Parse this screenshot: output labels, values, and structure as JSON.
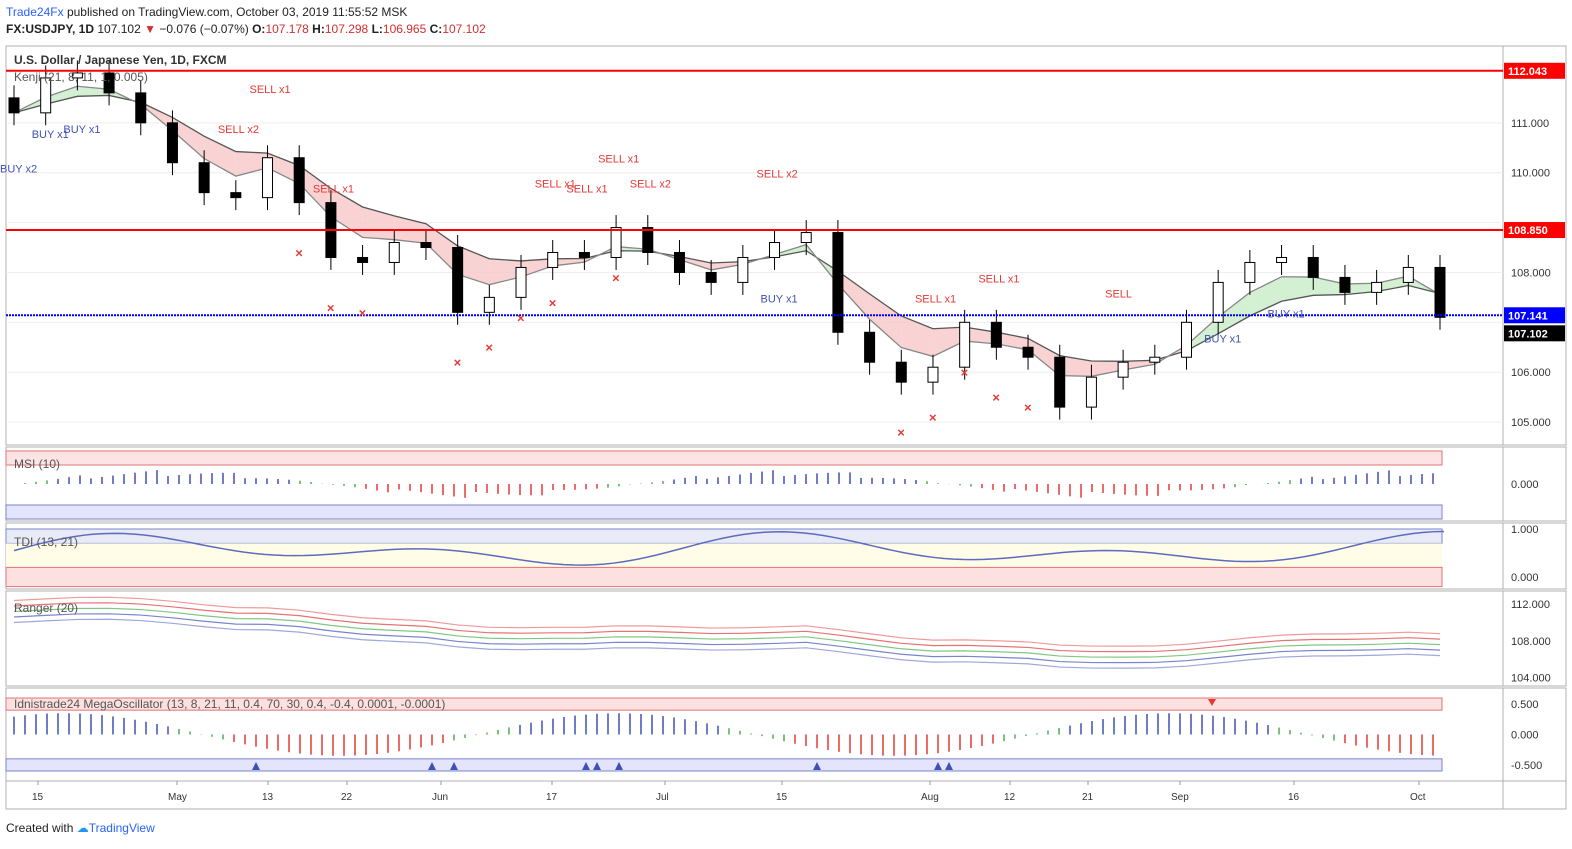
{
  "header": {
    "brand": "Trade24Fx",
    "published": "published on TradingView.com, October 03, 2019 11:55:52 MSK",
    "symbol": "FX:USDJPY, 1D",
    "last": "107.102",
    "change": "−0.076 (−0.07%)",
    "o_label": "O:",
    "o": "107.178",
    "h_label": "H:",
    "h": "107.298",
    "l_label": "L:",
    "l": "106.965",
    "c_label": "C:",
    "c": "107.102"
  },
  "main_pane": {
    "title": "U.S. Dollar / Japanese Yen, 1D, FXCM",
    "indicator": "Kenji (21, 8, 11, 1, 0.005)",
    "y_ticks": [
      "111.000",
      "110.000",
      "108.000",
      "106.000",
      "105.000"
    ],
    "hlines": [
      {
        "value": 112.043,
        "label": "112.043",
        "color": "#ff0000"
      },
      {
        "value": 108.85,
        "label": "108.850",
        "color": "#ff0000"
      },
      {
        "value": 107.141,
        "label": "107.141",
        "color": "#0000ff"
      }
    ],
    "last_price": "107.102",
    "annotations_sell": [
      "SELL x2",
      "SELL x1",
      "SELL x1",
      "SELL x1",
      "SELL x1",
      "SELL x1",
      "SELL x2",
      "SELL x2",
      "SELL x1",
      "SELL x1",
      "SELL"
    ],
    "annotations_buy": [
      "BUY x2",
      "BUY x1",
      "BUY x1",
      "BUY x1",
      "BUY x1",
      "BUY x1"
    ]
  },
  "panes": {
    "msi": {
      "label": "MSI (10)",
      "ticks": [
        "0.000"
      ]
    },
    "tdi": {
      "label": "TDI (13, 21)",
      "ticks": [
        "1.000",
        "0.000"
      ]
    },
    "ranger": {
      "label": "Ranger (20)",
      "ticks": [
        "112.000",
        "108.000",
        "104.000"
      ]
    },
    "mega": {
      "label": "Idnistrade24 MegaOscillator (13, 8, 21, 11, 0.4, 70, 30, 0.4, -0.4, 0.0001, -0.0001)",
      "ticks": [
        "0.500",
        "0.000",
        "-0.500"
      ]
    }
  },
  "x_axis": {
    "labels": [
      "15",
      "May",
      "13",
      "22",
      "Jun",
      "17",
      "Jul",
      "15",
      "Aug",
      "12",
      "21",
      "Sep",
      "16",
      "Oct"
    ]
  },
  "colors": {
    "up": "#ffffff",
    "down": "#000000",
    "sell": "#e53935",
    "buy": "#3f51b5",
    "cloud_down": "#f8c8c8",
    "cloud_up": "#c8ecc8"
  },
  "footer": {
    "created": "Created with",
    "tv": "TradingView"
  },
  "chart_data": {
    "type": "candlestick",
    "title": "U.S. Dollar / Japanese Yen, 1D, FXCM",
    "categories": [
      "15",
      "May",
      "13",
      "22",
      "Jun",
      "17",
      "Jul",
      "15",
      "Aug",
      "12",
      "21",
      "Sep",
      "16",
      "Oct"
    ],
    "close": [
      111.2,
      111.9,
      112.0,
      111.6,
      111.0,
      110.2,
      109.6,
      109.5,
      110.3,
      109.4,
      108.3,
      108.2,
      108.6,
      108.5,
      107.2,
      107.5,
      108.1,
      108.4,
      108.3,
      108.9,
      108.4,
      108.0,
      107.8,
      108.3,
      108.6,
      108.8,
      106.8,
      106.2,
      105.8,
      106.1,
      107.0,
      106.5,
      106.3,
      105.3,
      105.9,
      106.2,
      106.3,
      107.0,
      107.8,
      108.2,
      108.3,
      107.9,
      107.6,
      107.8,
      108.1,
      107.1
    ],
    "ylim": [
      104.5,
      112.5
    ]
  }
}
